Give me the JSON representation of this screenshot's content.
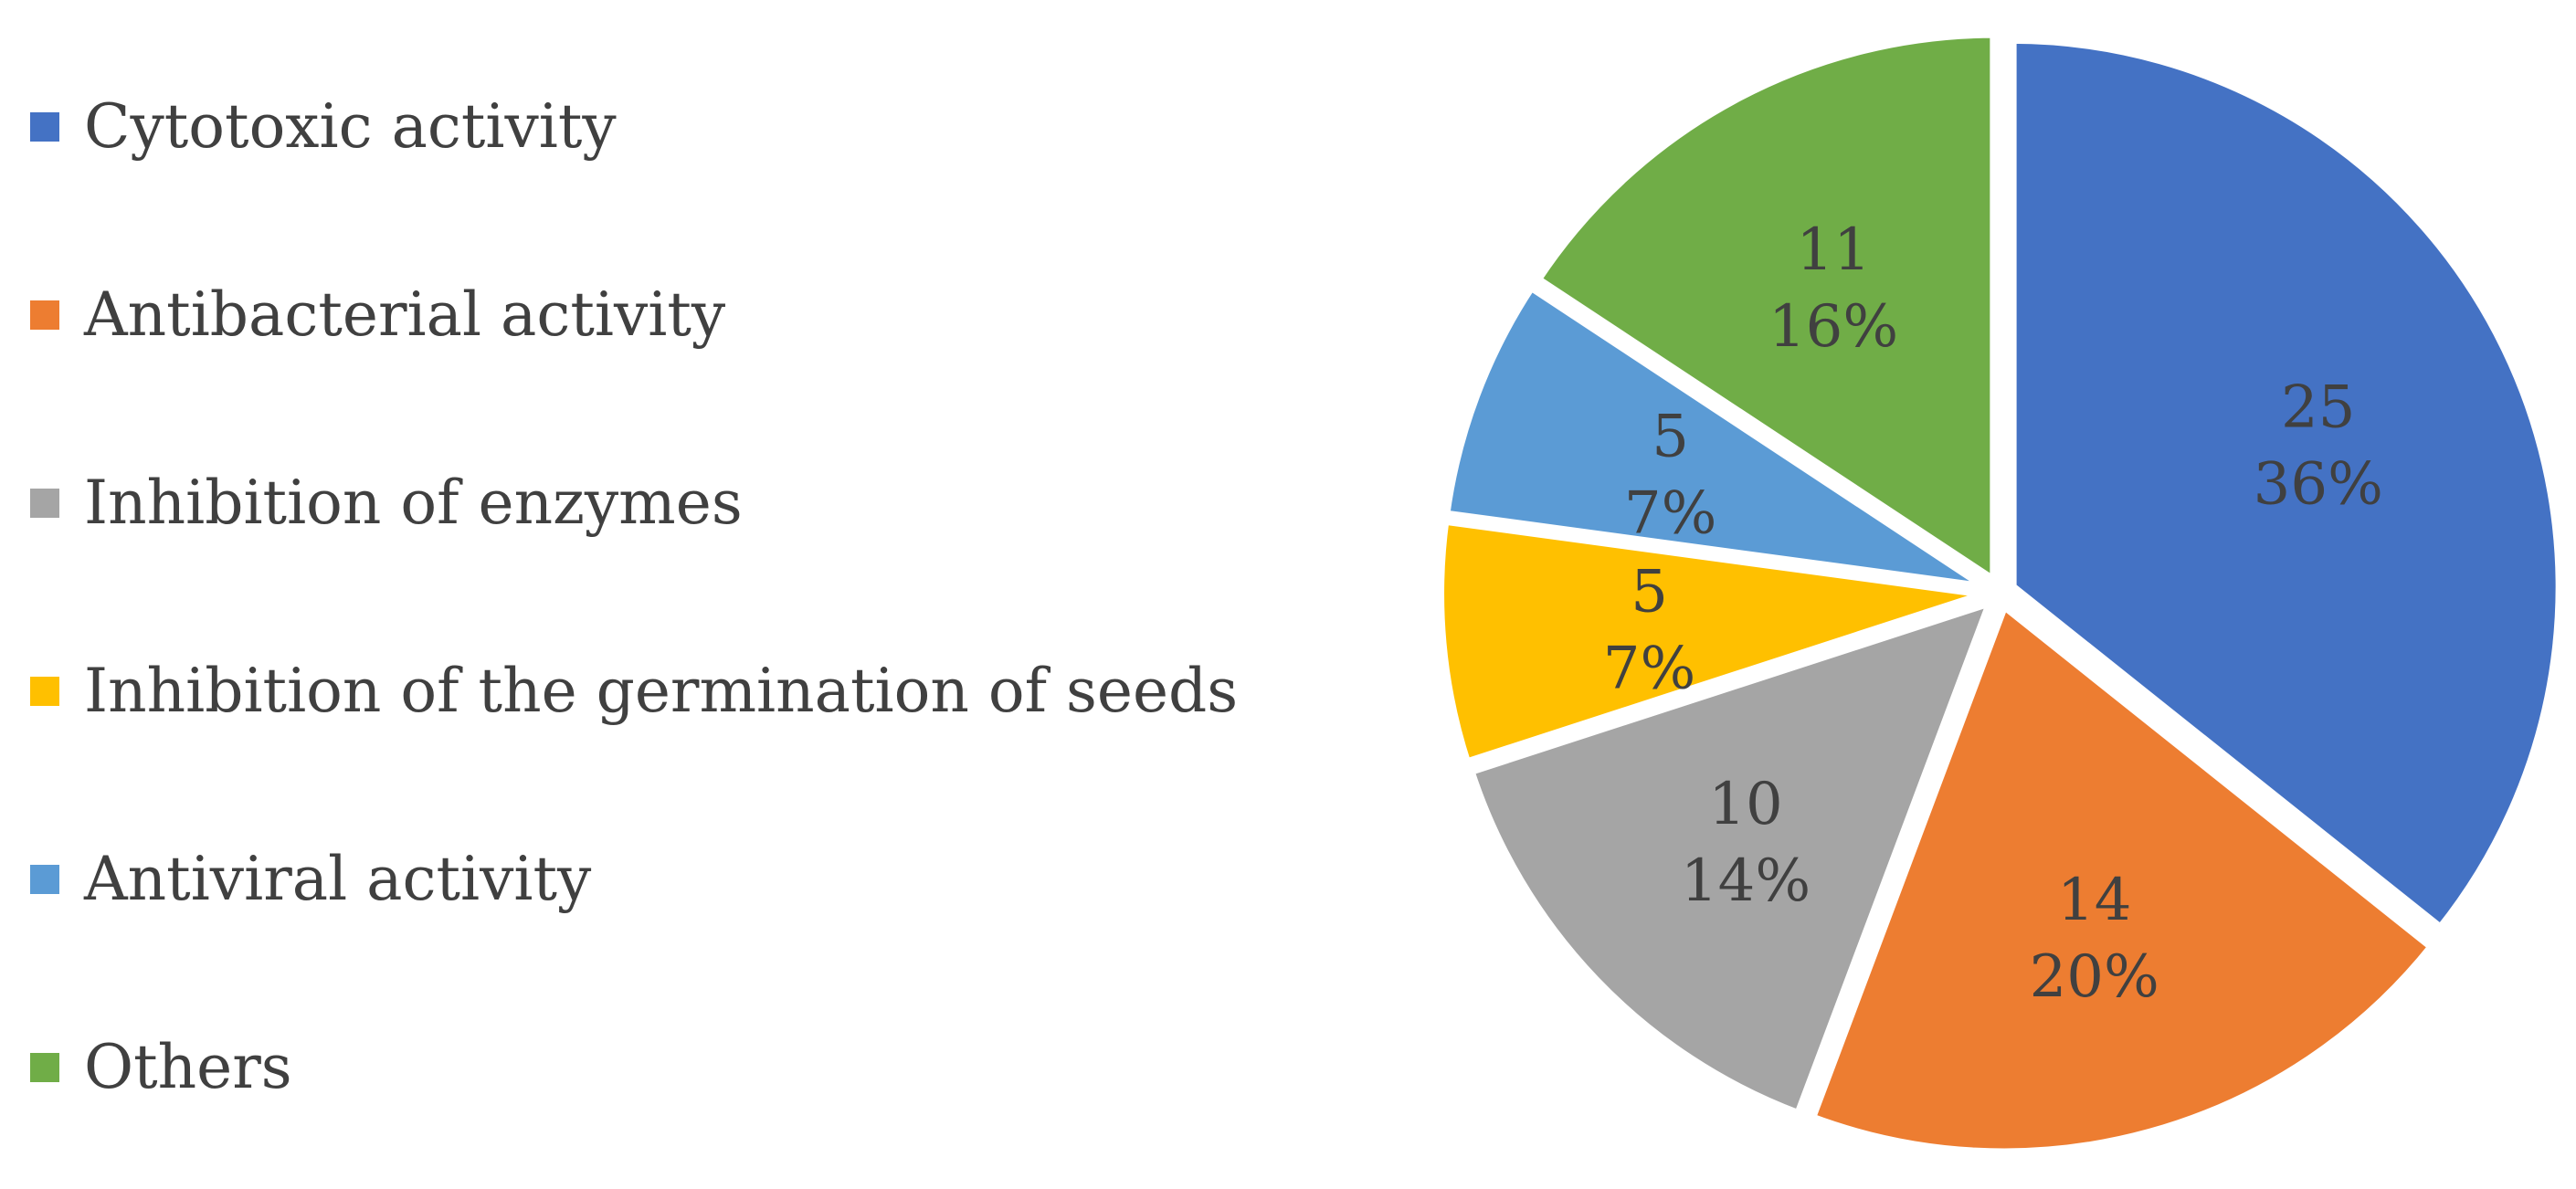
{
  "chart_data": {
    "type": "pie",
    "title": "",
    "legend_position": "left",
    "categories": [
      "Cytotoxic activity",
      "Antibacterial activity",
      "Inhibition of enzymes",
      "Inhibition of the germination of seeds",
      "Antiviral activity",
      "Others"
    ],
    "values": [
      25,
      14,
      10,
      5,
      5,
      11
    ],
    "percent_labels": [
      "36%",
      "20%",
      "14%",
      "7%",
      "7%",
      "16%"
    ],
    "colors": [
      "#4472C4",
      "#ED7D31",
      "#A5A5A5",
      "#FFC000",
      "#5B9BD5",
      "#70AD47"
    ],
    "start_angle_deg": 0,
    "direction": "clockwise",
    "exploded": true
  }
}
